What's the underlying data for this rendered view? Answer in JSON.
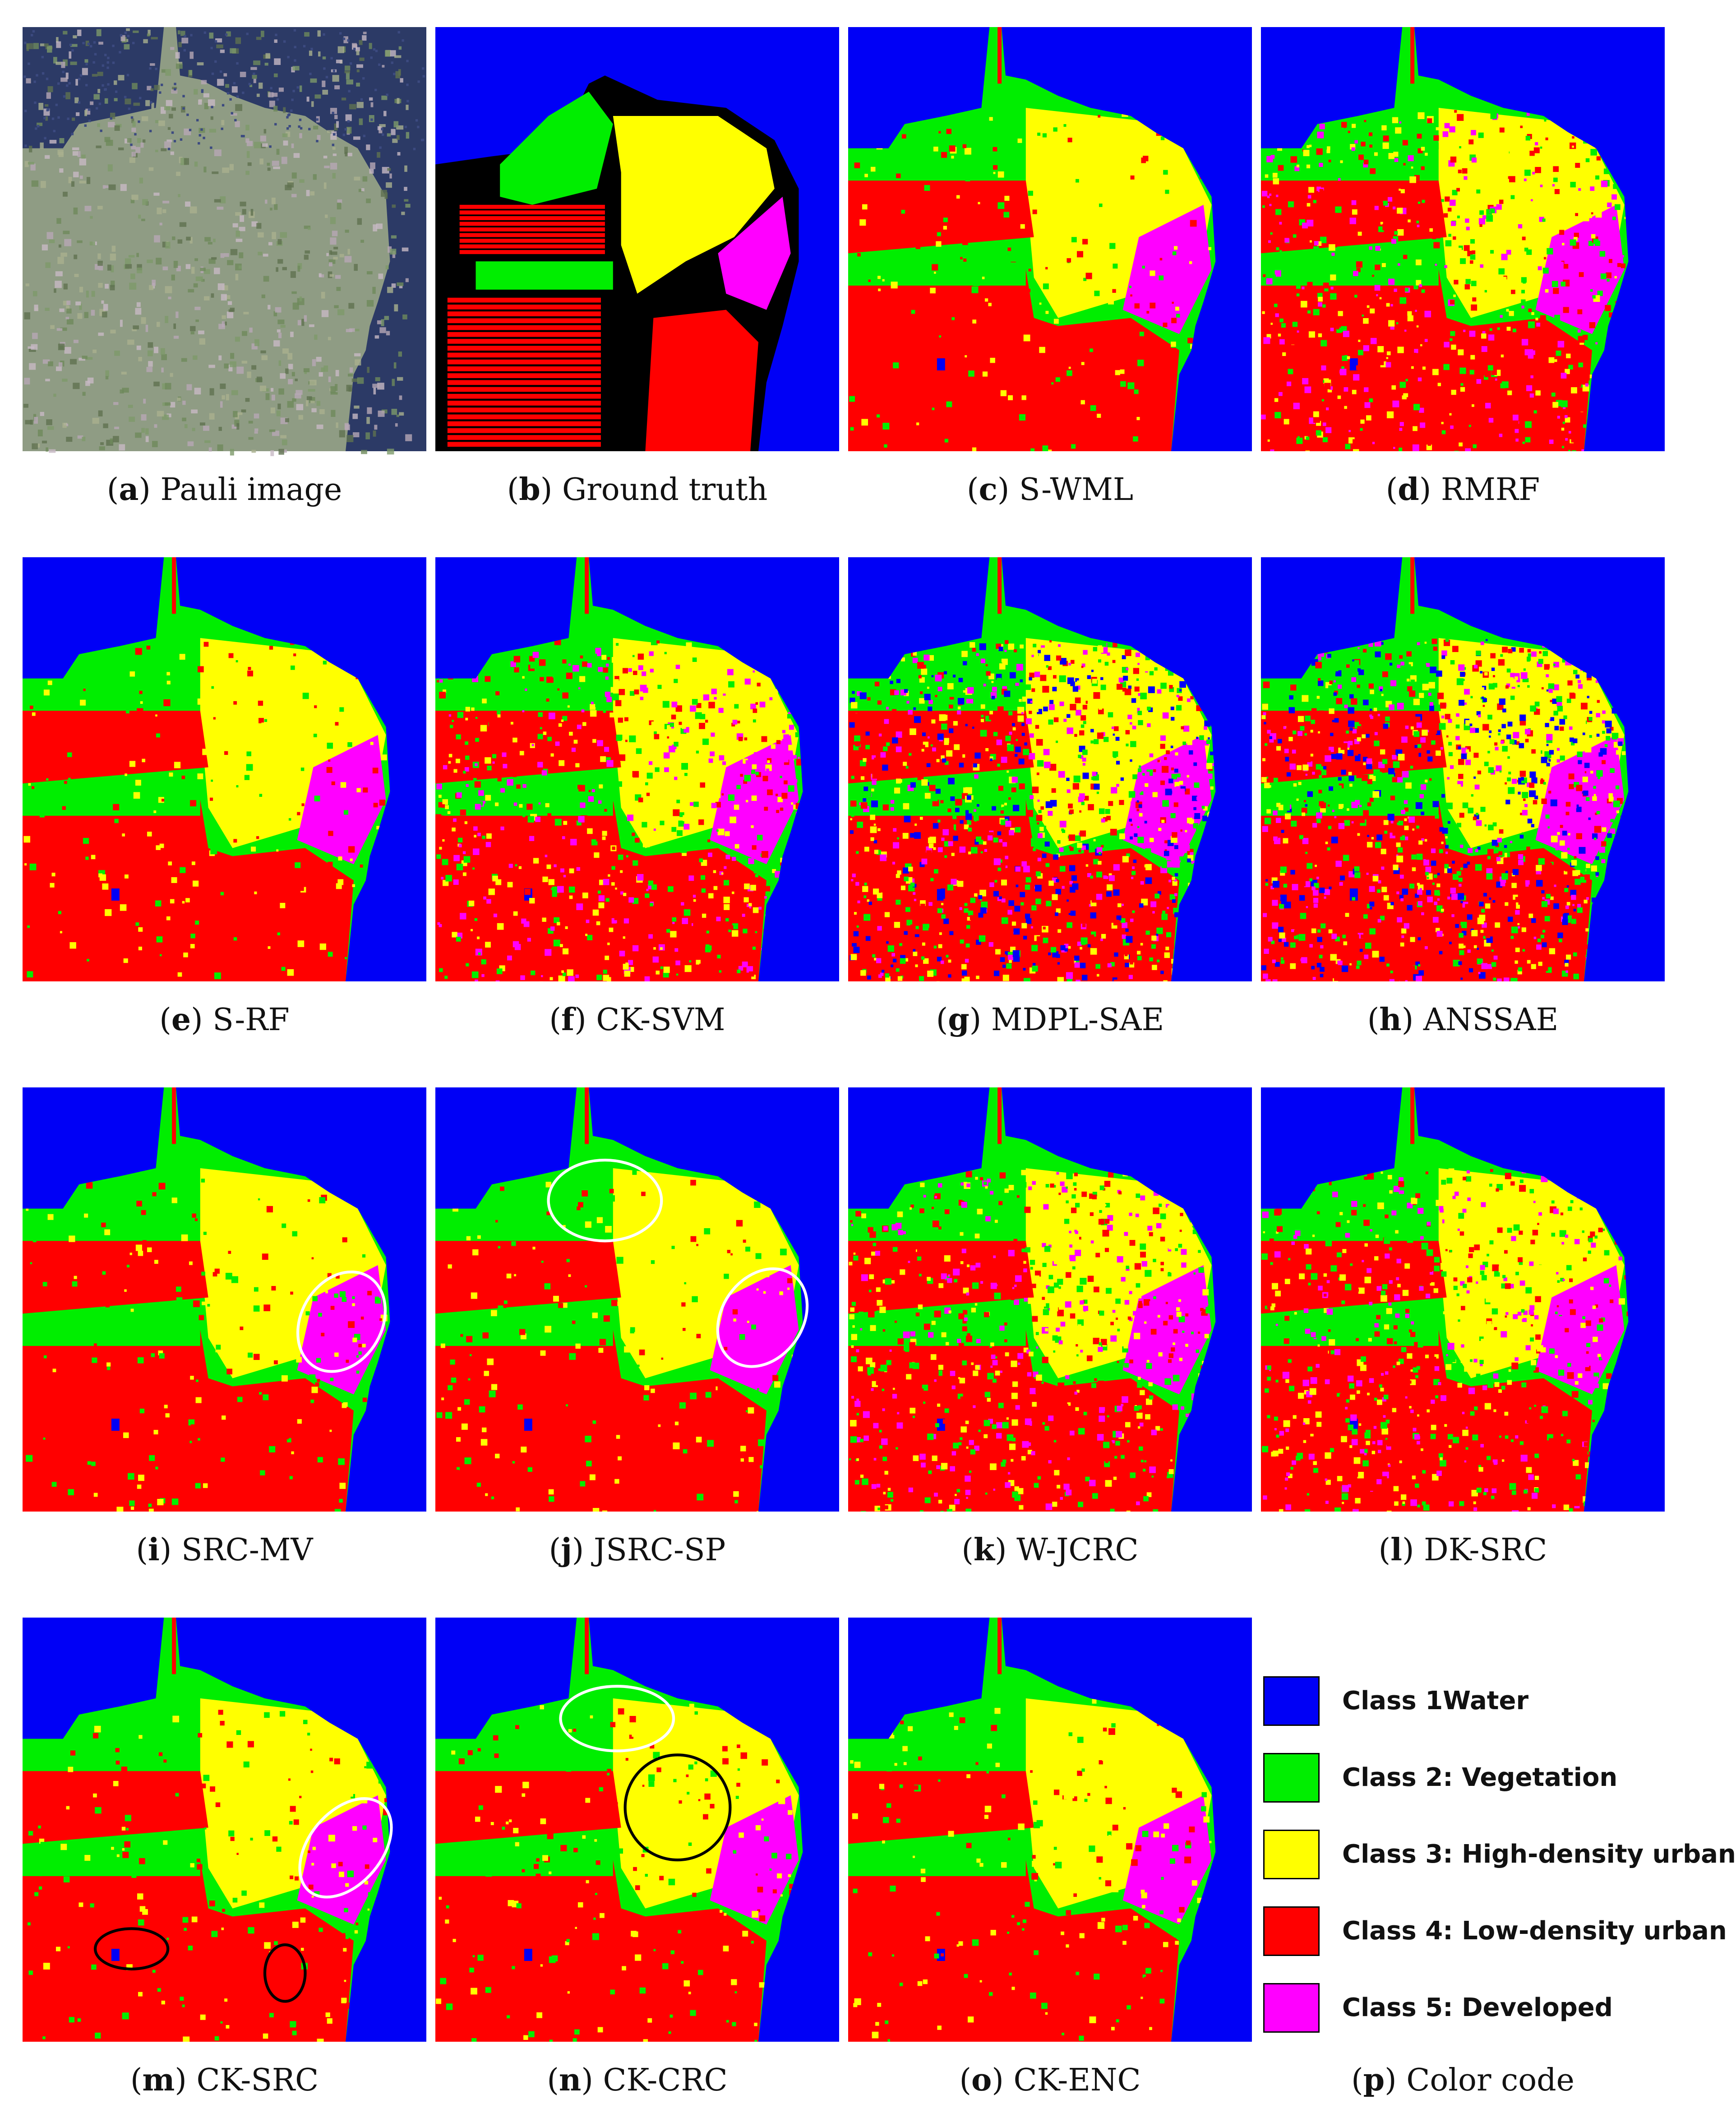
{
  "panels": [
    {
      "letter": "a",
      "caption": "Pauli image"
    },
    {
      "letter": "b",
      "caption": "Ground truth"
    },
    {
      "letter": "c",
      "caption": "S-WML"
    },
    {
      "letter": "d",
      "caption": "RMRF"
    },
    {
      "letter": "e",
      "caption": "S-RF"
    },
    {
      "letter": "f",
      "caption": "CK-SVM"
    },
    {
      "letter": "g",
      "caption": "MDPL-SAE"
    },
    {
      "letter": "h",
      "caption": "ANSSAE"
    },
    {
      "letter": "i",
      "caption": "SRC-MV"
    },
    {
      "letter": "j",
      "caption": "JSRC-SP"
    },
    {
      "letter": "k",
      "caption": "W-JCRC"
    },
    {
      "letter": "l",
      "caption": "DK-SRC"
    },
    {
      "letter": "m",
      "caption": "CK-SRC"
    },
    {
      "letter": "n",
      "caption": "CK-CRC"
    },
    {
      "letter": "o",
      "caption": "CK-ENC"
    },
    {
      "letter": "p",
      "caption": "Color code"
    }
  ],
  "legend": [
    {
      "label": "Class 1Water",
      "color": "#0000f6"
    },
    {
      "label": "Class 2: Vegetation",
      "color": "#00ee00"
    },
    {
      "label": "Class 3: High-density urban",
      "color": "#ffff00"
    },
    {
      "label": "Class 4: Low-density urban",
      "color": "#ff0000"
    },
    {
      "label": "Class 5: Developed",
      "color": "#ff00ff"
    }
  ],
  "colors": {
    "water": "#0000f6",
    "vegetation": "#00ee00",
    "high_density_urban": "#ffff00",
    "low_density_urban": "#ff0000",
    "developed": "#ff00ff",
    "unlabeled": "#000000"
  },
  "panel_styles": {
    "a": "pauli",
    "b": "groundtruth",
    "c": "clean",
    "d": "noisy",
    "e": "clean",
    "f": "noisy",
    "g": "verynoisy",
    "h": "verynoisy",
    "i": "clean",
    "j": "clean",
    "k": "noisy",
    "l": "noisy",
    "m": "clean",
    "n": "clean",
    "o": "clean"
  },
  "ellipse_annotations": {
    "i": [
      {
        "color": "white"
      }
    ],
    "j": [
      {
        "color": "white"
      },
      {
        "color": "white"
      }
    ],
    "m": [
      {
        "color": "white"
      },
      {
        "color": "black"
      },
      {
        "color": "black"
      }
    ],
    "n": [
      {
        "color": "white"
      },
      {
        "color": "black"
      }
    ]
  }
}
